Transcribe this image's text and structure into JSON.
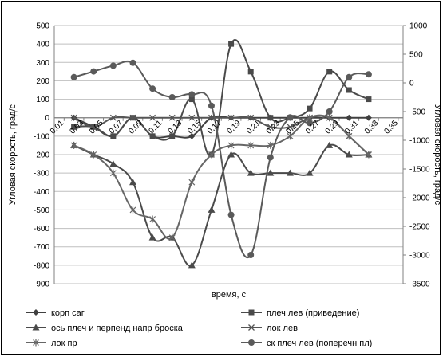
{
  "chart_data": {
    "type": "line",
    "xlabel": "время, с",
    "ylabel_left": "Угловая скорость, град/с",
    "ylabel_right": "Угловая скорость, град/с",
    "ylim_left": [
      -900,
      500
    ],
    "ylim_right": [
      -3500,
      1000
    ],
    "x_ticks": [
      "0,01",
      "0,03",
      "0,05",
      "0,07",
      "0,09",
      "0,11",
      "0,13",
      "0,15",
      "0,17",
      "0,19",
      "0,21",
      "0,23",
      "0,25",
      "0,27",
      "0,29",
      "0,31",
      "0,33",
      "0,35"
    ],
    "x_tick_values": [
      0.01,
      0.03,
      0.05,
      0.07,
      0.09,
      0.11,
      0.13,
      0.15,
      0.17,
      0.19,
      0.21,
      0.23,
      0.25,
      0.27,
      0.29,
      0.31,
      0.33,
      0.35
    ],
    "y_ticks_left": [
      "500",
      "400",
      "300",
      "200",
      "100",
      "0",
      "-100",
      "-200",
      "-300",
      "-400",
      "-500",
      "-600",
      "-700",
      "-800",
      "-900"
    ],
    "y_tick_values_left": [
      500,
      400,
      300,
      200,
      100,
      0,
      -100,
      -200,
      -300,
      -400,
      -500,
      -600,
      -700,
      -800,
      -900
    ],
    "y_ticks_right": [
      "1000",
      "500",
      "0",
      "-500",
      "-1000",
      "-1500",
      "-2000",
      "-2500",
      "-3000",
      "-3500"
    ],
    "y_tick_values_right": [
      1000,
      500,
      0,
      -500,
      -1000,
      -1500,
      -2000,
      -2500,
      -3000,
      -3500
    ],
    "grid": "horizontal",
    "legend_position": "bottom",
    "series": [
      {
        "name": "корп саг",
        "axis": "left",
        "marker": "diamond",
        "color": "#404040",
        "x": [
          0.02,
          0.04,
          0.06,
          0.08,
          0.1,
          0.12,
          0.14,
          0.16,
          0.18,
          0.2,
          0.22,
          0.24,
          0.26,
          0.28,
          0.3,
          0.32
        ],
        "y": [
          0,
          -50,
          -100,
          0,
          -100,
          -100,
          -100,
          0,
          0,
          0,
          0,
          0,
          0,
          0,
          0,
          0
        ]
      },
      {
        "name": "плеч лев (приведение)",
        "axis": "left",
        "marker": "square",
        "color": "#4a4a4a",
        "x": [
          0.02,
          0.04,
          0.06,
          0.08,
          0.1,
          0.12,
          0.14,
          0.16,
          0.18,
          0.2,
          0.22,
          0.24,
          0.26,
          0.28,
          0.3,
          0.32
        ],
        "y": [
          -50,
          -50,
          -100,
          0,
          -100,
          -100,
          100,
          -200,
          400,
          250,
          0,
          0,
          50,
          250,
          150,
          100
        ]
      },
      {
        "name": "ось плеч и перпенд напр броска",
        "axis": "left",
        "marker": "triangle",
        "color": "#4a4a4a",
        "x": [
          0.02,
          0.04,
          0.06,
          0.08,
          0.1,
          0.12,
          0.14,
          0.16,
          0.18,
          0.2,
          0.22,
          0.24,
          0.26,
          0.28,
          0.3,
          0.32
        ],
        "y": [
          -150,
          -200,
          -250,
          -350,
          -650,
          -650,
          -800,
          -500,
          -200,
          -300,
          -300,
          -300,
          -300,
          -150,
          -200,
          -200
        ]
      },
      {
        "name": "лок лев",
        "axis": "left",
        "marker": "x",
        "color": "#555555",
        "x": [
          0.02,
          0.04,
          0.06,
          0.08,
          0.1,
          0.12,
          0.14,
          0.16,
          0.18,
          0.2,
          0.22,
          0.24,
          0.26,
          0.28,
          0.3,
          0.32
        ],
        "y": [
          0,
          -50,
          0,
          0,
          0,
          0,
          0,
          0,
          0,
          0,
          -50,
          -50,
          0,
          0,
          -100,
          -200
        ]
      },
      {
        "name": "лок пр",
        "axis": "left",
        "marker": "star",
        "color": "#666666",
        "x": [
          0.02,
          0.04,
          0.06,
          0.08,
          0.1,
          0.12,
          0.14,
          0.16,
          0.18,
          0.2,
          0.22,
          0.24,
          0.26,
          0.28,
          0.3,
          0.32
        ],
        "y": [
          -150,
          -200,
          -300,
          -500,
          -550,
          -650,
          -350,
          -200,
          -150,
          -150,
          -150,
          -100,
          0,
          0,
          -100,
          -200
        ]
      },
      {
        "name": "ск плеч лев (поперечн пл)",
        "axis": "right",
        "marker": "circle",
        "color": "#5a5a5a",
        "x": [
          0.02,
          0.04,
          0.06,
          0.08,
          0.1,
          0.12,
          0.14,
          0.16,
          0.18,
          0.2,
          0.22,
          0.24,
          0.26,
          0.28,
          0.3,
          0.32
        ],
        "y": [
          100,
          200,
          300,
          350,
          -100,
          -250,
          -200,
          -400,
          -2300,
          -3000,
          -1300,
          -600,
          -700,
          -500,
          100,
          150
        ]
      }
    ]
  }
}
